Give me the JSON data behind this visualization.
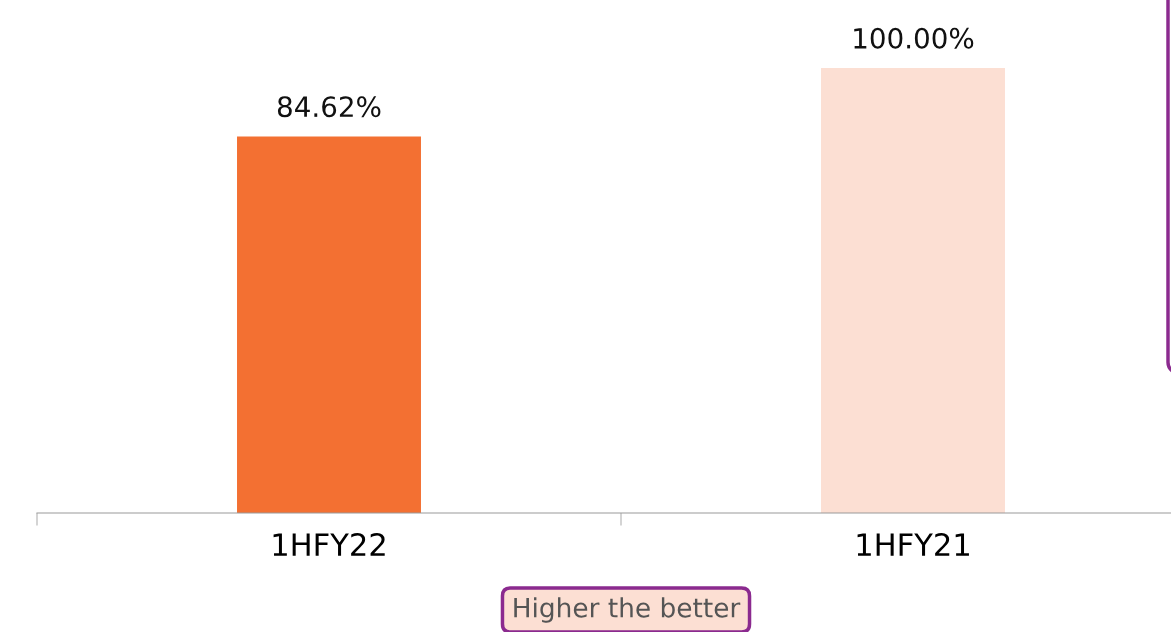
{
  "chart_data": {
    "type": "bar",
    "categories": [
      "1HFY22",
      "1HFY21"
    ],
    "values": [
      84.62,
      100
    ],
    "colors": [
      "#f37032",
      "#fcdfd3"
    ],
    "value_labels": [
      "84.62%",
      "100.00%"
    ],
    "annotations": [
      "Higher the better"
    ],
    "tick_labels": "x"
  }
}
